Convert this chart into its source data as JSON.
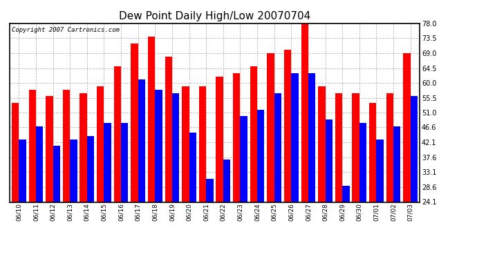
{
  "title": "Dew Point Daily High/Low 20070704",
  "copyright": "Copyright 2007 Cartronics.com",
  "dates": [
    "06/10",
    "06/11",
    "06/12",
    "06/13",
    "06/14",
    "06/15",
    "06/16",
    "06/17",
    "06/18",
    "06/19",
    "06/20",
    "06/21",
    "06/22",
    "06/23",
    "06/24",
    "06/25",
    "06/26",
    "06/27",
    "06/28",
    "06/29",
    "06/30",
    "07/01",
    "07/02",
    "07/03"
  ],
  "highs": [
    54,
    58,
    56,
    58,
    57,
    59,
    65,
    72,
    74,
    68,
    59,
    59,
    62,
    63,
    65,
    69,
    70,
    78,
    59,
    57,
    57,
    54,
    57,
    69
  ],
  "lows": [
    43,
    47,
    41,
    43,
    44,
    48,
    48,
    61,
    58,
    57,
    45,
    31,
    37,
    50,
    52,
    57,
    63,
    63,
    49,
    29,
    48,
    43,
    47,
    56
  ],
  "high_color": "#ff0000",
  "low_color": "#0000ff",
  "bg_color": "#ffffff",
  "plot_bg": "#ffffff",
  "grid_color": "#b0b0b0",
  "yticks": [
    24.1,
    28.6,
    33.1,
    37.6,
    42.1,
    46.6,
    51.0,
    55.5,
    60.0,
    64.5,
    69.0,
    73.5,
    78.0
  ],
  "ymin": 24.1,
  "ymax": 78.0,
  "bar_width": 0.42,
  "title_fontsize": 11,
  "tick_fontsize": 6.5,
  "ytick_fontsize": 7,
  "copyright_fontsize": 6.5
}
